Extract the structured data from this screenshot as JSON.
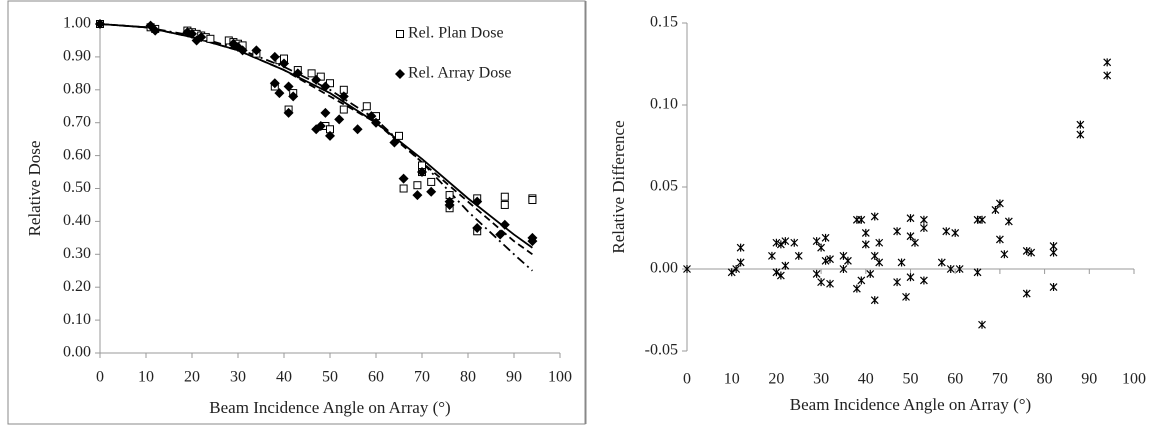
{
  "chart_data": [
    {
      "type": "scatter",
      "x_label": "Beam Incidence Angle on Array (°)",
      "y_label": "Relative Dose",
      "xlim": [
        0,
        100
      ],
      "xticks": [
        0,
        10,
        20,
        30,
        40,
        50,
        60,
        70,
        80,
        90,
        100
      ],
      "ylim": [
        0,
        1
      ],
      "yticks": [
        {
          "value": 0,
          "label": "0.00"
        },
        {
          "value": 0.1,
          "label": "0.10"
        },
        {
          "value": 0.2,
          "label": "0.20"
        },
        {
          "value": 0.3,
          "label": "0.30"
        },
        {
          "value": 0.4,
          "label": "0.40"
        },
        {
          "value": 0.5,
          "label": "0.50"
        },
        {
          "value": 0.6,
          "label": "0.60"
        },
        {
          "value": 0.7,
          "label": "0.70"
        },
        {
          "value": 0.8,
          "label": "0.80"
        },
        {
          "value": 0.9,
          "label": "0.90"
        },
        {
          "value": 1,
          "label": "1.00"
        }
      ],
      "legend": "upper right",
      "series": [
        {
          "style": "solid",
          "color": "#000000",
          "x": [
            0,
            10,
            20,
            30,
            40,
            50,
            60,
            70,
            80,
            90,
            94
          ],
          "values": [
            1.0,
            0.99,
            0.96,
            0.92,
            0.86,
            0.79,
            0.7,
            0.59,
            0.47,
            0.36,
            0.32
          ]
        },
        {
          "style": "dashed",
          "color": "#000000",
          "x": [
            0,
            10,
            20,
            30,
            40,
            50,
            60,
            70,
            80,
            90,
            94
          ],
          "values": [
            1.0,
            0.99,
            0.96,
            0.92,
            0.86,
            0.78,
            0.7,
            0.58,
            0.46,
            0.34,
            0.3
          ]
        },
        {
          "style": "dashdot",
          "color": "#000000",
          "x": [
            0,
            10,
            20,
            30,
            40,
            50,
            60,
            70,
            80,
            90,
            94
          ],
          "values": [
            1.0,
            0.99,
            0.965,
            0.925,
            0.87,
            0.8,
            0.71,
            0.58,
            0.43,
            0.3,
            0.25
          ]
        },
        {
          "name": "Rel. Plan Dose",
          "marker": "square-open",
          "color": "#000000",
          "x": [
            0,
            11,
            12,
            19,
            20,
            21,
            22,
            23,
            24,
            28,
            29,
            30,
            31,
            34,
            38,
            39,
            40,
            41,
            42,
            43,
            46,
            48,
            49,
            50,
            50,
            53,
            53,
            58,
            60,
            65,
            66,
            69,
            70,
            70,
            72,
            76,
            76,
            82,
            82,
            88,
            88,
            94,
            94
          ],
          "values": [
            1.0,
            0.99,
            0.985,
            0.98,
            0.975,
            0.97,
            0.965,
            0.96,
            0.955,
            0.95,
            0.945,
            0.94,
            0.935,
            0.91,
            0.81,
            0.89,
            0.895,
            0.74,
            0.79,
            0.86,
            0.85,
            0.84,
            0.69,
            0.68,
            0.82,
            0.8,
            0.74,
            0.75,
            0.72,
            0.66,
            0.5,
            0.51,
            0.57,
            0.55,
            0.52,
            0.48,
            0.44,
            0.47,
            0.37,
            0.475,
            0.45,
            0.47,
            0.465
          ]
        },
        {
          "name": "Rel. Array Dose",
          "marker": "diamond",
          "color": "#000000",
          "x": [
            0,
            11,
            12,
            19,
            20,
            21,
            22,
            29,
            30,
            31,
            34,
            38,
            38,
            39,
            40,
            41,
            41,
            42,
            43,
            47,
            48,
            49,
            50,
            47,
            49,
            52,
            53,
            56,
            59,
            60,
            64,
            66,
            69,
            70,
            72,
            76,
            76,
            82,
            82,
            87,
            88,
            94,
            94
          ],
          "values": [
            1.0,
            0.995,
            0.98,
            0.975,
            0.97,
            0.95,
            0.96,
            0.94,
            0.93,
            0.92,
            0.92,
            0.9,
            0.82,
            0.79,
            0.88,
            0.81,
            0.73,
            0.78,
            0.85,
            0.68,
            0.69,
            0.73,
            0.66,
            0.83,
            0.81,
            0.71,
            0.78,
            0.68,
            0.72,
            0.7,
            0.64,
            0.53,
            0.48,
            0.55,
            0.49,
            0.46,
            0.45,
            0.46,
            0.38,
            0.36,
            0.39,
            0.35,
            0.34
          ]
        }
      ]
    },
    {
      "type": "scatter",
      "x_label": "Beam Incidence Angle on Array (°)",
      "y_label": "Relative Difference",
      "xlim": [
        0,
        100
      ],
      "xticks": [
        0,
        10,
        20,
        30,
        40,
        50,
        60,
        70,
        80,
        90,
        100
      ],
      "ylim": [
        -0.05,
        0.15
      ],
      "yticks": [
        {
          "value": -0.05,
          "label": "-0.05"
        },
        {
          "value": 0,
          "label": "0.00"
        },
        {
          "value": 0.05,
          "label": "0.05"
        },
        {
          "value": 0.1,
          "label": "0.10"
        },
        {
          "value": 0.15,
          "label": "0.15"
        }
      ],
      "series": [
        {
          "marker": "asterisk",
          "color": "#000000",
          "x": [
            0,
            10,
            11,
            12,
            12,
            19,
            20,
            20,
            21,
            21,
            22,
            22,
            24,
            25,
            29,
            29,
            30,
            30,
            31,
            31,
            32,
            32,
            35,
            35,
            36,
            38,
            38,
            39,
            39,
            40,
            40,
            41,
            42,
            42,
            42,
            43,
            43,
            47,
            47,
            48,
            49,
            50,
            50,
            50,
            51,
            53,
            53,
            53,
            57,
            58,
            59,
            60,
            61,
            65,
            65,
            66,
            66,
            69,
            70,
            70,
            71,
            72,
            76,
            76,
            77,
            82,
            82,
            82,
            88,
            88,
            94,
            94
          ],
          "values": [
            0,
            -0.002,
            0.0,
            0.013,
            0.004,
            0.008,
            0.016,
            -0.002,
            -0.004,
            0.015,
            0.017,
            0.002,
            0.016,
            0.008,
            0.017,
            -0.003,
            0.013,
            -0.008,
            0.005,
            0.019,
            0.006,
            -0.009,
            0.008,
            0.0,
            0.005,
            -0.012,
            0.03,
            0.03,
            -0.007,
            0.022,
            0.015,
            -0.003,
            0.032,
            -0.019,
            0.008,
            0.016,
            0.004,
            0.023,
            -0.008,
            0.004,
            -0.017,
            0.031,
            0.02,
            -0.005,
            0.016,
            0.03,
            -0.007,
            0.025,
            0.004,
            0.023,
            0.0,
            0.022,
            0.0,
            0.03,
            -0.002,
            0.03,
            -0.034,
            0.036,
            0.04,
            0.018,
            0.009,
            0.029,
            0.011,
            -0.015,
            0.01,
            0.014,
            0.01,
            -0.011,
            0.088,
            0.082,
            0.126,
            0.118
          ]
        }
      ]
    }
  ]
}
